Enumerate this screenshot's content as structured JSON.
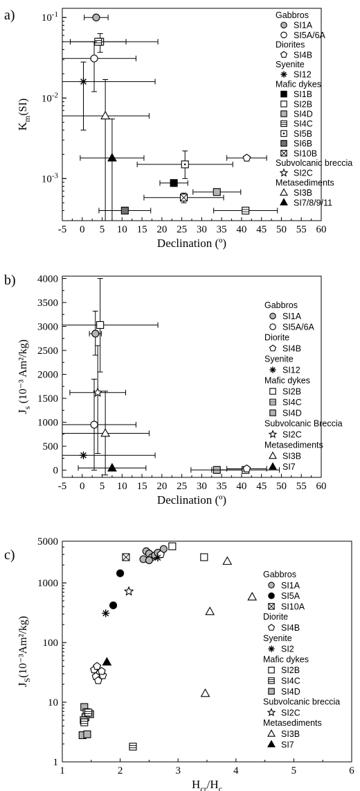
{
  "chart_data": [
    {
      "panel": "a)",
      "type": "scatter",
      "x_scale": "linear",
      "y_scale": "log",
      "xlabel": "Declination (º)",
      "ylabel_main": "K",
      "ylabel_sub": "m",
      "ylabel_tail": "(SI)",
      "xlim": [
        -5,
        60
      ],
      "ylim": [
        0.0003,
        0.13
      ],
      "x_ticks": [
        -5,
        0,
        5,
        10,
        15,
        20,
        25,
        30,
        35,
        40,
        45,
        50,
        55,
        60
      ],
      "y_ticks": [
        {
          "value": 0.1,
          "base": "10",
          "exp": "-1"
        },
        {
          "value": 0.01,
          "base": "10",
          "exp": "-2"
        },
        {
          "value": 0.001,
          "base": "10",
          "exp": "-3"
        }
      ],
      "legend": [
        {
          "heading": "Gabbros"
        },
        {
          "label": "SI1A",
          "marker": "circle",
          "fill": "#b4b4b4"
        },
        {
          "label": "SI5A/6A",
          "marker": "circle",
          "fill": "#ffffff"
        },
        {
          "heading": "Diorites"
        },
        {
          "label": "SI4B",
          "marker": "pentagon",
          "fill": "#ffffff"
        },
        {
          "heading": "Syenite"
        },
        {
          "label": "SI12",
          "marker": "asterisk",
          "fill": "#000000"
        },
        {
          "heading": "Mafic dykes"
        },
        {
          "label": "SI1B",
          "marker": "square",
          "fill": "#000000"
        },
        {
          "label": "SI2B",
          "marker": "square",
          "fill": "#ffffff"
        },
        {
          "label": "SI4D",
          "marker": "square",
          "fill": "#b4b4b4"
        },
        {
          "label": "SI4C",
          "marker": "square-lines",
          "fill": "#ffffff"
        },
        {
          "label": "SI5B",
          "marker": "square-dot",
          "fill": "#ffffff"
        },
        {
          "label": "SI6B",
          "marker": "square",
          "fill": "#707070"
        },
        {
          "label": "SI10B",
          "marker": "square-x",
          "fill": "#ffffff"
        },
        {
          "heading": "Subvolcanic breccia"
        },
        {
          "label": "SI2C",
          "marker": "star",
          "fill": "#ffffff"
        },
        {
          "heading": "Metasediments"
        },
        {
          "label": "SI3B",
          "marker": "triangle",
          "fill": "#ffffff"
        },
        {
          "label": "SI7/8/9/11",
          "marker": "triangle",
          "fill": "#000000"
        }
      ],
      "points": [
        {
          "series": "SI1A",
          "x": 3.5,
          "y": 0.1,
          "xerr": 3,
          "ylo": 0.1,
          "yhi": 0.1,
          "marker": "circle",
          "fill": "#b4b4b4"
        },
        {
          "series": "SI2B",
          "x": 4.5,
          "y": 0.05,
          "xerr": 14.5,
          "ylo": 0.037,
          "yhi": 0.063,
          "marker": "square",
          "fill": "#ffffff"
        },
        {
          "series": "SI4C",
          "x": 4,
          "y": 0.05,
          "xerr": 7,
          "ylo": 0.05,
          "yhi": 0.05,
          "marker": "square-lines",
          "fill": "#ffffff"
        },
        {
          "series": "SI5A/6A",
          "x": 3,
          "y": 0.031,
          "xerr": 10.5,
          "ylo": 0.012,
          "yhi": 0.05,
          "marker": "circle",
          "fill": "#ffffff"
        },
        {
          "series": "SI12",
          "x": 0.3,
          "y": 0.016,
          "xerr": 18,
          "ylo": 0.004,
          "yhi": 0.028,
          "marker": "asterisk",
          "fill": "#000000"
        },
        {
          "series": "SI3B",
          "x": 5.8,
          "y": 0.006,
          "xerr": 11,
          "ylo": 0.0003,
          "yhi": 0.017,
          "marker": "triangle",
          "fill": "#ffffff"
        },
        {
          "series": "SI7/8/9/11",
          "x": 7.5,
          "y": 0.0018,
          "xerr": 8,
          "ylo": 0.0003,
          "yhi": 0.0055,
          "marker": "triangle",
          "fill": "#000000"
        },
        {
          "series": "SI4B",
          "x": 41.3,
          "y": 0.0018,
          "xerr": 5,
          "ylo": 0.0018,
          "yhi": 0.0018,
          "marker": "pentagon",
          "fill": "#ffffff"
        },
        {
          "series": "SI5B",
          "x": 25.8,
          "y": 0.0015,
          "xerr": 12,
          "ylo": 0.001,
          "yhi": 0.0022,
          "marker": "square-dot",
          "fill": "#ffffff"
        },
        {
          "series": "SI1B",
          "x": 23,
          "y": 0.00088,
          "xerr": 3.5,
          "ylo": 0.00088,
          "yhi": 0.00088,
          "marker": "square",
          "fill": "#000000"
        },
        {
          "series": "SI4D",
          "x": 33.8,
          "y": 0.00068,
          "xerr": 6,
          "ylo": 0.00068,
          "yhi": 0.00068,
          "marker": "square",
          "fill": "#b4b4b4"
        },
        {
          "series": "SI10B",
          "x": 25.5,
          "y": 0.00058,
          "xerr": 10,
          "ylo": 0.0005,
          "yhi": 0.00066,
          "marker": "square-x",
          "fill": "#ffffff"
        },
        {
          "series": "SI6B",
          "x": 10.7,
          "y": 0.0004,
          "xerr": 6.5,
          "ylo": 0.0004,
          "yhi": 0.0004,
          "marker": "square",
          "fill": "#707070"
        },
        {
          "series": "SI4C",
          "x": 41,
          "y": 0.0004,
          "xerr": 8,
          "ylo": 0.0004,
          "yhi": 0.0004,
          "marker": "square-lines",
          "fill": "#ffffff"
        }
      ]
    },
    {
      "panel": "b)",
      "type": "scatter",
      "x_scale": "linear",
      "y_scale": "linear",
      "xlabel": "Declination (º)",
      "ylabel_main": "J",
      "ylabel_sub": "s",
      "ylabel_tail": " (10⁻³ Am²/kg)",
      "xlim": [
        -5,
        60
      ],
      "ylim": [
        -150,
        4050
      ],
      "x_ticks": [
        -5,
        0,
        5,
        10,
        15,
        20,
        25,
        30,
        35,
        40,
        45,
        50,
        55,
        60
      ],
      "y_ticks": [
        {
          "value": 0,
          "label": "0"
        },
        {
          "value": 500,
          "label": "500"
        },
        {
          "value": 1000,
          "label": "1000"
        },
        {
          "value": 1500,
          "label": "1500"
        },
        {
          "value": 2000,
          "label": "2000"
        },
        {
          "value": 2500,
          "label": "2500"
        },
        {
          "value": 3000,
          "label": "3000"
        },
        {
          "value": 3500,
          "label": "3500"
        },
        {
          "value": 4000,
          "label": "4000"
        }
      ],
      "legend": [
        {
          "heading": "Gabbros"
        },
        {
          "label": "SI1A",
          "marker": "circle",
          "fill": "#b4b4b4"
        },
        {
          "label": "SI5A/6A",
          "marker": "circle",
          "fill": "#ffffff"
        },
        {
          "heading": "Diorite"
        },
        {
          "label": "SI4B",
          "marker": "pentagon",
          "fill": "#ffffff"
        },
        {
          "heading": "Syenite"
        },
        {
          "label": "SI12",
          "marker": "asterisk",
          "fill": "#000000"
        },
        {
          "heading": "Mafic dykes"
        },
        {
          "label": "SI2B",
          "marker": "square",
          "fill": "#ffffff"
        },
        {
          "label": "SI4C",
          "marker": "square-lines",
          "fill": "#ffffff"
        },
        {
          "label": "SI4D",
          "marker": "square",
          "fill": "#b4b4b4"
        },
        {
          "heading": "Subvolcanic Breccia"
        },
        {
          "label": "SI2C",
          "marker": "star",
          "fill": "#ffffff"
        },
        {
          "heading": "Metasediments"
        },
        {
          "label": "SI3B",
          "marker": "triangle",
          "fill": "#ffffff"
        },
        {
          "label": "SI7",
          "marker": "triangle",
          "fill": "#000000"
        }
      ],
      "points": [
        {
          "series": "SI2B",
          "x": 4.5,
          "y": 3030,
          "xerr": 14.5,
          "ylo": 2050,
          "yhi": 4000,
          "marker": "square",
          "fill": "#ffffff"
        },
        {
          "series": "SI1A",
          "x": 3.3,
          "y": 2850,
          "xerr": 1.5,
          "ylo": 2400,
          "yhi": 3320,
          "marker": "circle",
          "fill": "#b4b4b4"
        },
        {
          "series": "SI2C",
          "x": 3.9,
          "y": 1620,
          "xerr": 7,
          "ylo": 350,
          "yhi": 2600,
          "marker": "star",
          "fill": "#ffffff"
        },
        {
          "series": "SI5A/6A",
          "x": 3,
          "y": 950,
          "xerr": 10.5,
          "ylo": 0,
          "yhi": 1900,
          "marker": "circle",
          "fill": "#ffffff"
        },
        {
          "series": "SI3B",
          "x": 5.8,
          "y": 770,
          "xerr": 11,
          "ylo": -100,
          "yhi": 1650,
          "marker": "triangle",
          "fill": "#ffffff"
        },
        {
          "series": "SI12",
          "x": 0.3,
          "y": 310,
          "xerr": 18,
          "ylo": 310,
          "yhi": 310,
          "marker": "asterisk",
          "fill": "#000000"
        },
        {
          "series": "SI7",
          "x": 7.5,
          "y": 45,
          "xerr": 8.5,
          "ylo": 45,
          "yhi": 45,
          "marker": "triangle",
          "fill": "#000000"
        },
        {
          "series": "SI4D",
          "x": 33.8,
          "y": 5,
          "xerr": 6.5,
          "ylo": 5,
          "yhi": 5,
          "marker": "square",
          "fill": "#b4b4b4"
        },
        {
          "series": "SI4C",
          "x": 41,
          "y": 5,
          "xerr": 8.5,
          "ylo": 5,
          "yhi": 5,
          "marker": "square-lines",
          "fill": "#ffffff"
        },
        {
          "series": "SI4B",
          "x": 41.3,
          "y": 30,
          "xerr": 5,
          "ylo": 30,
          "yhi": 30,
          "marker": "pentagon",
          "fill": "#ffffff"
        }
      ]
    },
    {
      "panel": "c)",
      "type": "scatter",
      "x_scale": "linear",
      "y_scale": "log",
      "xlabel_main": "H",
      "xlabel_sub": "cr",
      "xlabel_mid": "/H",
      "xlabel_sub2": "c",
      "ylabel_main": "J",
      "ylabel_sub": "S",
      "ylabel_tail": "(10⁻³Am²/kg)",
      "xlim": [
        1,
        6
      ],
      "ylim": [
        1,
        5000
      ],
      "x_ticks": [
        1,
        2,
        3,
        4,
        5,
        6
      ],
      "y_ticks": [
        {
          "value": 1,
          "label": "1"
        },
        {
          "value": 10,
          "label": "10"
        },
        {
          "value": 100,
          "label": "100"
        },
        {
          "value": 1000,
          "label": "1000"
        },
        {
          "value": 5000,
          "label": "5000"
        }
      ],
      "legend": [
        {
          "heading": "Gabbros"
        },
        {
          "label": "SI1A",
          "marker": "circle",
          "fill": "#b4b4b4"
        },
        {
          "label": "SI5A",
          "marker": "circle",
          "fill": "#000000"
        },
        {
          "label": "SI10A",
          "marker": "square-x",
          "fill": "#ffffff"
        },
        {
          "heading": "Diorite"
        },
        {
          "label": "SI4B",
          "marker": "pentagon",
          "fill": "#ffffff"
        },
        {
          "heading": "Syenite"
        },
        {
          "label": "SI2",
          "marker": "asterisk",
          "fill": "#000000"
        },
        {
          "heading": "Mafic dykes"
        },
        {
          "label": "SI2B",
          "marker": "square",
          "fill": "#ffffff"
        },
        {
          "label": "SI4C",
          "marker": "square-lines",
          "fill": "#ffffff"
        },
        {
          "label": "SI4D",
          "marker": "square",
          "fill": "#b4b4b4"
        },
        {
          "heading": "Subvolcanic breccia"
        },
        {
          "label": "SI2C",
          "marker": "star",
          "fill": "#ffffff"
        },
        {
          "heading": "Metasediments"
        },
        {
          "label": "SI3B",
          "marker": "triangle",
          "fill": "#ffffff"
        },
        {
          "label": "SI7",
          "marker": "triangle",
          "fill": "#000000"
        }
      ],
      "points": [
        {
          "series": "SI1A",
          "x": 2.45,
          "y": 3400,
          "marker": "circle",
          "fill": "#b4b4b4"
        },
        {
          "series": "SI1A",
          "x": 2.5,
          "y": 3100,
          "marker": "circle",
          "fill": "#b4b4b4"
        },
        {
          "series": "SI1A",
          "x": 2.55,
          "y": 2700,
          "marker": "circle",
          "fill": "#b4b4b4"
        },
        {
          "series": "SI1A",
          "x": 2.6,
          "y": 2900,
          "marker": "circle",
          "fill": "#b4b4b4"
        },
        {
          "series": "SI1A",
          "x": 2.65,
          "y": 3200,
          "marker": "circle",
          "fill": "#b4b4b4"
        },
        {
          "series": "SI1A",
          "x": 2.4,
          "y": 2500,
          "marker": "circle",
          "fill": "#b4b4b4"
        },
        {
          "series": "SI1A",
          "x": 2.5,
          "y": 2400,
          "marker": "circle",
          "fill": "#b4b4b4"
        },
        {
          "series": "SI1A",
          "x": 2.75,
          "y": 3700,
          "marker": "circle",
          "fill": "#b4b4b4"
        },
        {
          "series": "SI4B",
          "x": 2.7,
          "y": 3000,
          "marker": "pentagon",
          "fill": "#ffffff"
        },
        {
          "series": "SI2",
          "x": 2.65,
          "y": 2650,
          "marker": "asterisk",
          "fill": "#000000"
        },
        {
          "series": "SI2B",
          "x": 2.9,
          "y": 4100,
          "marker": "square",
          "fill": "#ffffff"
        },
        {
          "series": "SI2B",
          "x": 3.45,
          "y": 2700,
          "marker": "square",
          "fill": "#ffffff"
        },
        {
          "series": "SI10A",
          "x": 2.1,
          "y": 2700,
          "marker": "square-x",
          "fill": "#ffffff"
        },
        {
          "series": "SI5A",
          "x": 2.0,
          "y": 1450,
          "marker": "circle",
          "fill": "#000000"
        },
        {
          "series": "SI5A",
          "x": 1.88,
          "y": 420,
          "marker": "circle",
          "fill": "#000000"
        },
        {
          "series": "SI2C",
          "x": 2.15,
          "y": 720,
          "marker": "star",
          "fill": "#ffffff"
        },
        {
          "series": "SI2",
          "x": 1.75,
          "y": 310,
          "marker": "asterisk",
          "fill": "#000000"
        },
        {
          "series": "SI3B",
          "x": 3.85,
          "y": 2300,
          "marker": "triangle",
          "fill": "#ffffff"
        },
        {
          "series": "SI3B",
          "x": 4.28,
          "y": 580,
          "marker": "triangle",
          "fill": "#ffffff"
        },
        {
          "series": "SI3B",
          "x": 3.55,
          "y": 330,
          "marker": "triangle",
          "fill": "#ffffff"
        },
        {
          "series": "SI3B",
          "x": 3.47,
          "y": 14,
          "marker": "triangle",
          "fill": "#ffffff"
        },
        {
          "series": "SI7",
          "x": 1.77,
          "y": 47,
          "marker": "triangle",
          "fill": "#000000"
        },
        {
          "series": "SI4B",
          "x": 1.55,
          "y": 35,
          "marker": "pentagon",
          "fill": "#ffffff"
        },
        {
          "series": "SI4B",
          "x": 1.6,
          "y": 40,
          "marker": "pentagon",
          "fill": "#ffffff"
        },
        {
          "series": "SI4B",
          "x": 1.65,
          "y": 31,
          "marker": "pentagon",
          "fill": "#ffffff"
        },
        {
          "series": "SI4B",
          "x": 1.7,
          "y": 28,
          "marker": "pentagon",
          "fill": "#ffffff"
        },
        {
          "series": "SI4B",
          "x": 1.58,
          "y": 27,
          "marker": "pentagon",
          "fill": "#ffffff"
        },
        {
          "series": "SI4B",
          "x": 1.62,
          "y": 23,
          "marker": "pentagon",
          "fill": "#ffffff"
        },
        {
          "series": "SI4B",
          "x": 1.68,
          "y": 33,
          "marker": "pentagon",
          "fill": "#ffffff"
        },
        {
          "series": "SI4D",
          "x": 1.38,
          "y": 8.3,
          "marker": "square",
          "fill": "#b4b4b4"
        },
        {
          "series": "SI4D",
          "x": 1.42,
          "y": 6.8,
          "marker": "square",
          "fill": "#b4b4b4"
        },
        {
          "series": "SI4D",
          "x": 1.48,
          "y": 6.3,
          "marker": "square",
          "fill": "#b4b4b4"
        },
        {
          "series": "SI4D",
          "x": 1.4,
          "y": 5.6,
          "marker": "square",
          "fill": "#b4b4b4"
        },
        {
          "series": "SI4D",
          "x": 1.37,
          "y": 5.0,
          "marker": "square",
          "fill": "#b4b4b4"
        },
        {
          "series": "SI4D",
          "x": 1.35,
          "y": 2.8,
          "marker": "square",
          "fill": "#b4b4b4"
        },
        {
          "series": "SI4D",
          "x": 1.43,
          "y": 2.9,
          "marker": "square",
          "fill": "#b4b4b4"
        },
        {
          "series": "SI4C",
          "x": 1.45,
          "y": 6.7,
          "marker": "square-lines",
          "fill": "#ffffff"
        },
        {
          "series": "SI4C",
          "x": 1.38,
          "y": 4.6,
          "marker": "square-lines",
          "fill": "#ffffff"
        },
        {
          "series": "SI4C",
          "x": 2.22,
          "y": 1.8,
          "marker": "square-lines",
          "fill": "#ffffff"
        }
      ]
    }
  ]
}
